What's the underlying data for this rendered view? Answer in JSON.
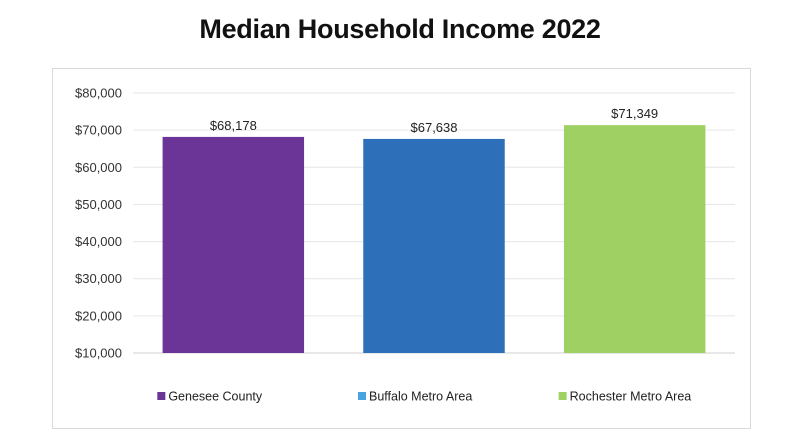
{
  "chart_data": {
    "type": "bar",
    "title": "Median Household Income 2022",
    "categories": [
      "Genesee County",
      "Buffalo Metro Area",
      "Rochester Metro Area"
    ],
    "values": [
      68178,
      67638,
      71349
    ],
    "data_labels": [
      "$68,178",
      "$67,638",
      "$71,349"
    ],
    "colors": [
      "#6a3597",
      "#2e6fba",
      "#9fd063"
    ],
    "legend_swatch_colors": [
      "#6a3597",
      "#4aa3df",
      "#9fd063"
    ],
    "ylim": [
      10000,
      80000
    ],
    "yticks": [
      10000,
      20000,
      30000,
      40000,
      50000,
      60000,
      70000,
      80000
    ],
    "ytick_labels": [
      "$10,000",
      "$20,000",
      "$30,000",
      "$40,000",
      "$50,000",
      "$60,000",
      "$70,000",
      "$80,000"
    ],
    "xlabel": "",
    "ylabel": "",
    "grid": true,
    "legend": "bottom"
  }
}
